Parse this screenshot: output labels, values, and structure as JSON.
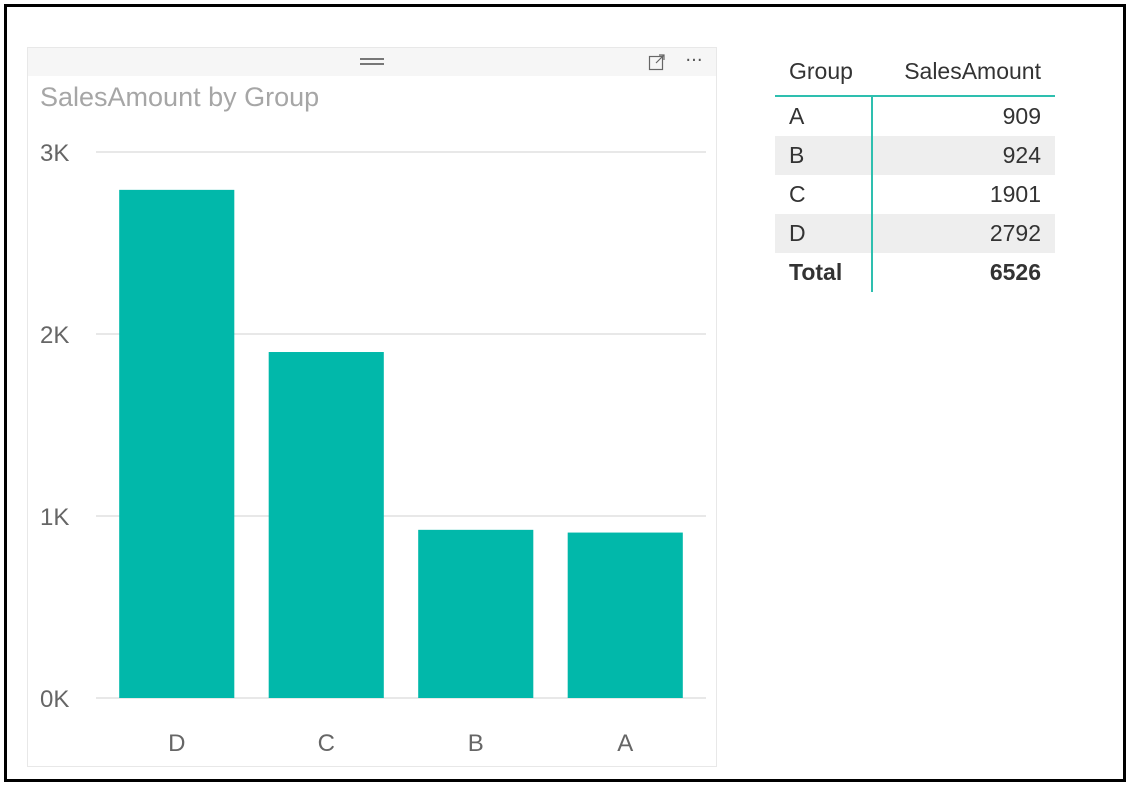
{
  "colors": {
    "bar": "#01b8aa",
    "grid": "#e8e8e8",
    "axis_text": "#666666",
    "accent": "#2ebfaf"
  },
  "visual_header": {
    "focus_icon": "focus-mode-icon",
    "more_icon": "more-options-icon",
    "more_label": "···"
  },
  "chart_data": {
    "type": "bar",
    "title": "SalesAmount by Group",
    "categories": [
      "D",
      "C",
      "B",
      "A"
    ],
    "values": [
      2792,
      1901,
      924,
      909
    ],
    "y_ticks": [
      "0K",
      "1K",
      "2K",
      "3K"
    ],
    "ylim": [
      0,
      3000
    ],
    "grid": true
  },
  "table": {
    "columns": [
      "Group",
      "SalesAmount"
    ],
    "rows": [
      {
        "group": "A",
        "value": "909"
      },
      {
        "group": "B",
        "value": "924"
      },
      {
        "group": "C",
        "value": "1901"
      },
      {
        "group": "D",
        "value": "2792"
      }
    ],
    "total": {
      "label": "Total",
      "value": "6526"
    }
  }
}
